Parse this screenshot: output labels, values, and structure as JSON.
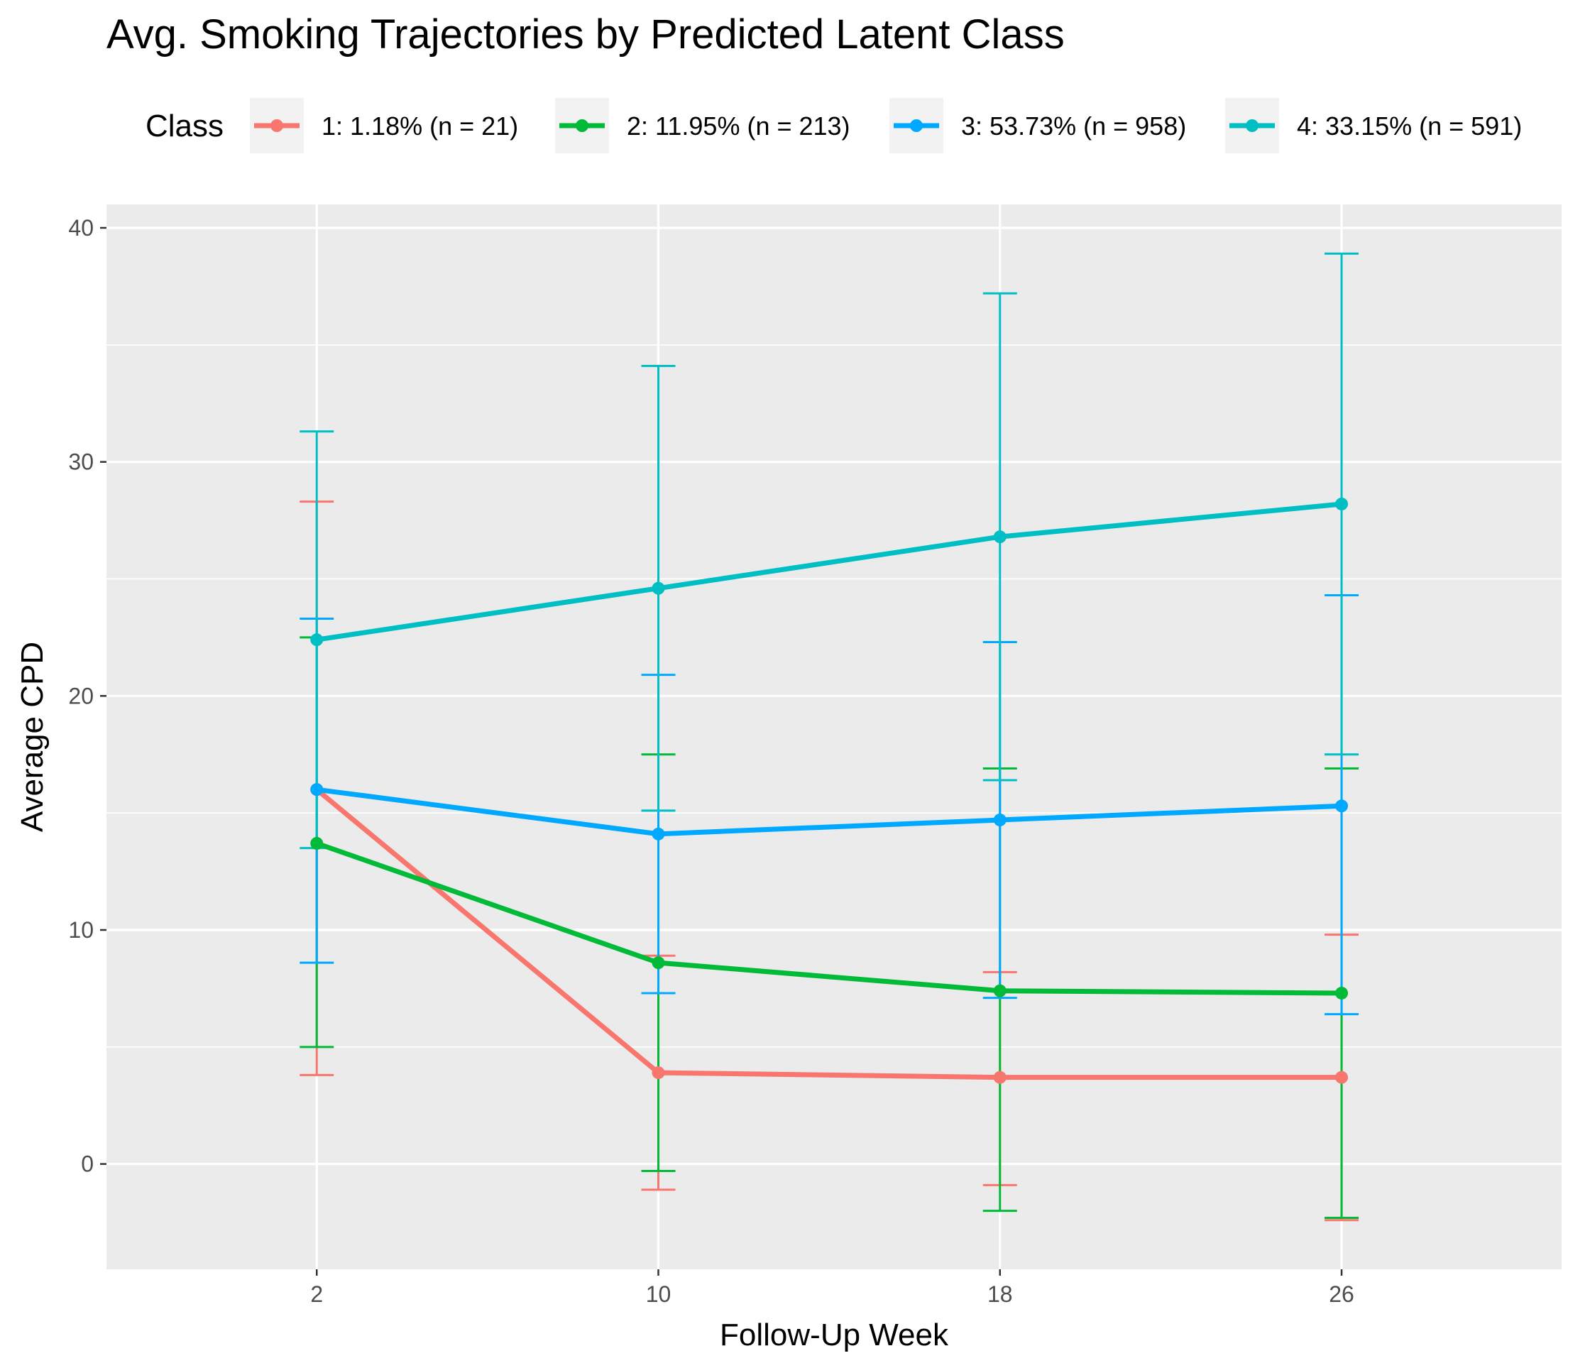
{
  "chart_data": {
    "type": "line",
    "title": "Avg. Smoking Trajectories by Predicted Latent Class",
    "xlabel": "Follow-Up Week",
    "ylabel": "Average CPD",
    "legend_title": "Class",
    "legend_position": "top",
    "grid": true,
    "categories": [
      "2",
      "10",
      "18",
      "26"
    ],
    "ylim": [
      -4.5,
      41
    ],
    "yticks": [
      0,
      10,
      20,
      30,
      40
    ],
    "series": [
      {
        "name": "1: 1.18% (n = 21)",
        "color": "#F8766D",
        "values": [
          16.0,
          3.9,
          3.7,
          3.7
        ],
        "lower": [
          3.8,
          -1.1,
          -0.9,
          -2.4
        ],
        "upper": [
          28.3,
          8.9,
          8.2,
          9.8
        ]
      },
      {
        "name": "2: 11.95% (n = 213)",
        "color": "#00BA38",
        "values": [
          13.7,
          8.6,
          7.4,
          7.3
        ],
        "lower": [
          5.0,
          -0.3,
          -2.0,
          -2.3
        ],
        "upper": [
          22.5,
          17.5,
          16.9,
          16.9
        ]
      },
      {
        "name": "3: 53.73% (n = 958)",
        "color": "#00A9FF",
        "values": [
          16.0,
          14.1,
          14.7,
          15.3
        ],
        "lower": [
          8.6,
          7.3,
          7.1,
          6.4
        ],
        "upper": [
          23.3,
          20.9,
          22.3,
          24.3
        ]
      },
      {
        "name": "4: 33.15% (n = 591)",
        "color": "#00BFC4",
        "values": [
          22.4,
          24.6,
          26.8,
          28.2
        ],
        "lower": [
          13.5,
          15.1,
          16.4,
          17.5
        ],
        "upper": [
          31.3,
          34.1,
          37.2,
          38.9
        ]
      }
    ]
  }
}
